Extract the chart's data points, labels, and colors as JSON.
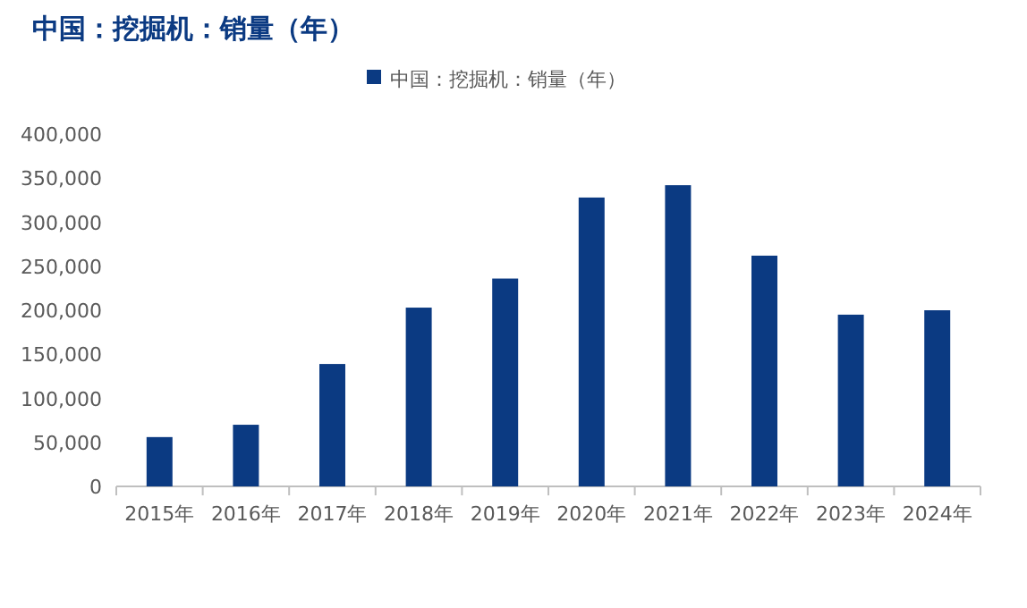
{
  "chart_data": {
    "type": "bar",
    "title": "中国：挖掘机：销量（年）",
    "categories": [
      "2015年",
      "2016年",
      "2017年",
      "2018年",
      "2019年",
      "2020年",
      "2021年",
      "2022年",
      "2023年",
      "2024年"
    ],
    "series": [
      {
        "name": "中国：挖掘机：销量（年）",
        "color": "#0b3a82",
        "values": [
          56000,
          70000,
          139000,
          203000,
          236000,
          328000,
          342000,
          262000,
          195000,
          200000
        ]
      }
    ],
    "ylim": [
      0,
      400000
    ],
    "yticks": [
      {
        "value": 0,
        "label": "0"
      },
      {
        "value": 50000,
        "label": "50,000"
      },
      {
        "value": 100000,
        "label": "100,000"
      },
      {
        "value": 150000,
        "label": "150,000"
      },
      {
        "value": 200000,
        "label": "200,000"
      },
      {
        "value": 250000,
        "label": "250,000"
      },
      {
        "value": 300000,
        "label": "300,000"
      },
      {
        "value": 350000,
        "label": "350,000"
      },
      {
        "value": 400000,
        "label": "400,000"
      }
    ],
    "grid": false,
    "legend": "top"
  }
}
